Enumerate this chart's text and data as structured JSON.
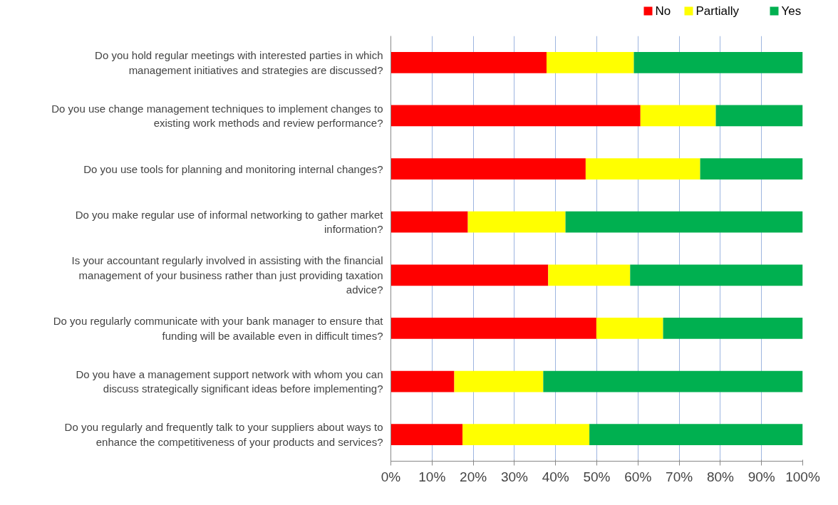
{
  "chart_data": {
    "type": "bar",
    "orientation": "horizontal",
    "stacked": true,
    "categories": [
      "Do you hold regular meetings with interested parties in which\nmanagement initiatives and strategies are discussed?",
      "Do you use change management techniques to implement changes to\nexisting work methods and review performance?",
      "Do you use tools for planning and monitoring internal changes?",
      "Do you make regular use of informal networking to gather market\ninformation?",
      "Is your accountant regularly involved in assisting with the financial\nmanagement of your business rather than just providing taxation\nadvice?",
      "Do you regularly communicate with your bank manager to ensure that\nfunding will be available even in difficult times?",
      "Do you have a management support network with whom you can\ndiscuss strategically significant ideas before implementing?",
      "Do you regularly and frequently talk to your suppliers about ways to\nenhance the competitiveness of your products and services?"
    ],
    "series": [
      {
        "name": "No",
        "color": "#ff0000",
        "values": [
          37.8,
          60.6,
          47.3,
          18.7,
          38.2,
          49.9,
          15.4,
          17.4
        ]
      },
      {
        "name": "Partially",
        "color": "#ffff00",
        "values": [
          21.2,
          18.3,
          27.8,
          23.7,
          19.9,
          16.2,
          21.6,
          30.8
        ]
      },
      {
        "name": "Yes",
        "color": "#00b050",
        "values": [
          41.0,
          21.1,
          24.9,
          57.6,
          41.9,
          33.9,
          63.0,
          51.8
        ]
      }
    ],
    "xlim": [
      0,
      100
    ],
    "xticks": [
      {
        "value": 0,
        "label": "0%"
      },
      {
        "value": 10,
        "label": "10%"
      },
      {
        "value": 20,
        "label": "20%"
      },
      {
        "value": 30,
        "label": "30%"
      },
      {
        "value": 40,
        "label": "40%"
      },
      {
        "value": 50,
        "label": "50%"
      },
      {
        "value": 60,
        "label": "60%"
      },
      {
        "value": 70,
        "label": "70%"
      },
      {
        "value": 80,
        "label": "80%"
      },
      {
        "value": 90,
        "label": "90%"
      },
      {
        "value": 100,
        "label": "100%"
      }
    ],
    "grid": "x",
    "legend": "top right"
  }
}
